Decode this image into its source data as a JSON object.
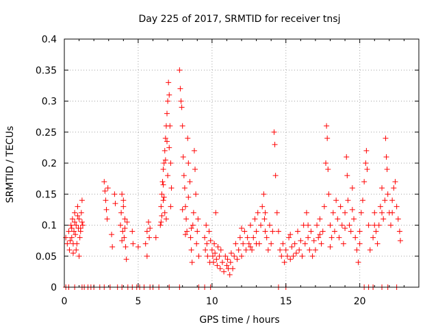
{
  "chart_data": {
    "type": "scatter",
    "title": "Day 225 of 2017, SRMTID for receiver tnsj",
    "xlabel": "GPS time / hours",
    "ylabel": "SRMTID / TECUs",
    "xlim": [
      0,
      24
    ],
    "ylim": [
      0,
      0.4
    ],
    "xticks": [
      0,
      5,
      10,
      15,
      20
    ],
    "xtick_labels": [
      "0",
      "5",
      "10",
      "15",
      "20"
    ],
    "yticks": [
      0,
      0.05,
      0.1,
      0.15,
      0.2,
      0.25,
      0.3,
      0.35,
      0.4
    ],
    "ytick_labels": [
      "0",
      "0.05",
      "0.1",
      "0.15",
      "0.2",
      "0.25",
      "0.3",
      "0.35",
      "0.4"
    ],
    "grid": true,
    "marker": "+",
    "marker_color": "#ff0000",
    "series": [
      {
        "name": "SRMTID",
        "points": [
          [
            0.1,
            0.08
          ],
          [
            0.2,
            0.07
          ],
          [
            0.3,
            0.09
          ],
          [
            0.35,
            0.06
          ],
          [
            0.45,
            0.1
          ],
          [
            0.5,
            0.08
          ],
          [
            0.55,
            0.11
          ],
          [
            0.6,
            0.07
          ],
          [
            0.65,
            0.09
          ],
          [
            0.7,
            0.12
          ],
          [
            0.75,
            0.085
          ],
          [
            0.8,
            0.1
          ],
          [
            0.85,
            0.07
          ],
          [
            0.9,
            0.13
          ],
          [
            0.95,
            0.095
          ],
          [
            1.0,
            0.11
          ],
          [
            1.05,
            0.08
          ],
          [
            1.1,
            0.09
          ],
          [
            1.15,
            0.12
          ],
          [
            1.2,
            0.14
          ],
          [
            1.25,
            0.1
          ],
          [
            0.6,
            0.055
          ],
          [
            0.8,
            0.06
          ],
          [
            1.0,
            0.05
          ],
          [
            0.7,
            0.105
          ],
          [
            0.9,
            0.115
          ],
          [
            1.1,
            0.095
          ],
          [
            0.5,
            0.095
          ],
          [
            1.2,
            0.105
          ],
          [
            0.4,
            0.075
          ],
          [
            2.7,
            0.17
          ],
          [
            2.75,
            0.155
          ],
          [
            2.8,
            0.14
          ],
          [
            2.85,
            0.125
          ],
          [
            2.9,
            0.11
          ],
          [
            2.95,
            0.16
          ],
          [
            3.2,
            0.085
          ],
          [
            3.25,
            0.065
          ],
          [
            3.4,
            0.15
          ],
          [
            3.45,
            0.135
          ],
          [
            3.8,
            0.1
          ],
          [
            3.85,
            0.12
          ],
          [
            3.9,
            0.15
          ],
          [
            3.95,
            0.09
          ],
          [
            4.0,
            0.13
          ],
          [
            4.05,
            0.08
          ],
          [
            4.1,
            0.11
          ],
          [
            4.15,
            0.065
          ],
          [
            4.2,
            0.045
          ],
          [
            4.25,
            0.105
          ],
          [
            3.9,
            0.075
          ],
          [
            4.0,
            0.14
          ],
          [
            4.1,
            0.095
          ],
          [
            4.6,
            0.09
          ],
          [
            4.65,
            0.07
          ],
          [
            5.0,
            0.065
          ],
          [
            5.5,
            0.07
          ],
          [
            5.6,
            0.09
          ],
          [
            5.7,
            0.105
          ],
          [
            5.75,
            0.08
          ],
          [
            5.8,
            0.095
          ],
          [
            5.6,
            0.05
          ],
          [
            6.2,
            0.08
          ],
          [
            6.5,
            0.1
          ],
          [
            6.55,
            0.13
          ],
          [
            6.6,
            0.15
          ],
          [
            6.65,
            0.17
          ],
          [
            6.7,
            0.19
          ],
          [
            6.75,
            0.2
          ],
          [
            6.8,
            0.22
          ],
          [
            6.85,
            0.24
          ],
          [
            6.9,
            0.26
          ],
          [
            6.95,
            0.28
          ],
          [
            7.0,
            0.3
          ],
          [
            7.05,
            0.33
          ],
          [
            7.1,
            0.31
          ],
          [
            7.15,
            0.26
          ],
          [
            7.2,
            0.2
          ],
          [
            7.25,
            0.16
          ],
          [
            6.7,
            0.14
          ],
          [
            6.8,
            0.12
          ],
          [
            6.9,
            0.11
          ],
          [
            7.0,
            0.18
          ],
          [
            6.6,
            0.115
          ],
          [
            6.7,
            0.165
          ],
          [
            6.85,
            0.205
          ],
          [
            6.95,
            0.235
          ],
          [
            7.1,
            0.225
          ],
          [
            7.2,
            0.13
          ],
          [
            6.55,
            0.105
          ],
          [
            6.75,
            0.145
          ],
          [
            7.8,
            0.35
          ],
          [
            7.85,
            0.32
          ],
          [
            7.9,
            0.3
          ],
          [
            7.95,
            0.29
          ],
          [
            8.0,
            0.26
          ],
          [
            8.05,
            0.21
          ],
          [
            8.1,
            0.18
          ],
          [
            8.15,
            0.16
          ],
          [
            8.2,
            0.13
          ],
          [
            8.25,
            0.11
          ],
          [
            8.3,
            0.09
          ],
          [
            8.35,
            0.24
          ],
          [
            8.4,
            0.2
          ],
          [
            8.5,
            0.17
          ],
          [
            8.55,
            0.08
          ],
          [
            8.6,
            0.06
          ],
          [
            8.65,
            0.04
          ],
          [
            8.7,
            0.1
          ],
          [
            8.75,
            0.12
          ],
          [
            8.8,
            0.22
          ],
          [
            8.85,
            0.19
          ],
          [
            8.9,
            0.15
          ],
          [
            8.95,
            0.07
          ],
          [
            9.0,
            0.09
          ],
          [
            9.05,
            0.11
          ],
          [
            9.1,
            0.05
          ],
          [
            8.0,
            0.125
          ],
          [
            8.2,
            0.085
          ],
          [
            8.4,
            0.145
          ],
          [
            8.6,
            0.095
          ],
          [
            9.5,
            0.08
          ],
          [
            9.55,
            0.06
          ],
          [
            9.6,
            0.1
          ],
          [
            9.65,
            0.07
          ],
          [
            9.7,
            0.05
          ],
          [
            9.8,
            0.09
          ],
          [
            9.85,
            0.04
          ],
          [
            9.9,
            0.075
          ],
          [
            10.0,
            0.06
          ],
          [
            10.05,
            0.05
          ],
          [
            10.1,
            0.04
          ],
          [
            10.15,
            0.07
          ],
          [
            10.2,
            0.055
          ],
          [
            10.25,
            0.12
          ],
          [
            10.3,
            0.045
          ],
          [
            10.35,
            0.035
          ],
          [
            10.4,
            0.065
          ],
          [
            10.5,
            0.05
          ],
          [
            10.55,
            0.03
          ],
          [
            10.6,
            0.06
          ],
          [
            10.7,
            0.04
          ],
          [
            10.8,
            0.025
          ],
          [
            10.9,
            0.05
          ],
          [
            11.0,
            0.035
          ],
          [
            11.05,
            0.045
          ],
          [
            11.1,
            0.03
          ],
          [
            11.2,
            0.02
          ],
          [
            11.25,
            0.04
          ],
          [
            11.3,
            0.055
          ],
          [
            11.4,
            0.03
          ],
          [
            11.5,
            0.05
          ],
          [
            11.6,
            0.07
          ],
          [
            11.7,
            0.045
          ],
          [
            11.8,
            0.06
          ],
          [
            11.9,
            0.08
          ],
          [
            12.0,
            0.05
          ],
          [
            12.1,
            0.07
          ],
          [
            12.2,
            0.09
          ],
          [
            12.3,
            0.06
          ],
          [
            12.4,
            0.08
          ],
          [
            12.5,
            0.07
          ],
          [
            12.6,
            0.1
          ],
          [
            12.7,
            0.06
          ],
          [
            12.8,
            0.08
          ],
          [
            12.9,
            0.11
          ],
          [
            13.0,
            0.09
          ],
          [
            13.1,
            0.12
          ],
          [
            13.2,
            0.07
          ],
          [
            13.3,
            0.1
          ],
          [
            13.4,
            0.13
          ],
          [
            13.5,
            0.15
          ],
          [
            13.55,
            0.11
          ],
          [
            13.6,
            0.09
          ],
          [
            13.7,
            0.08
          ],
          [
            13.8,
            0.06
          ],
          [
            13.9,
            0.1
          ],
          [
            14.0,
            0.07
          ],
          [
            14.1,
            0.09
          ],
          [
            14.2,
            0.25
          ],
          [
            14.25,
            0.23
          ],
          [
            14.3,
            0.18
          ],
          [
            14.4,
            0.12
          ],
          [
            14.5,
            0.09
          ],
          [
            14.6,
            0.06
          ],
          [
            14.7,
            0.05
          ],
          [
            14.8,
            0.07
          ],
          [
            14.9,
            0.04
          ],
          [
            15.0,
            0.06
          ],
          [
            15.1,
            0.05
          ],
          [
            15.2,
            0.08
          ],
          [
            15.3,
            0.045
          ],
          [
            15.4,
            0.065
          ],
          [
            15.5,
            0.05
          ],
          [
            15.6,
            0.07
          ],
          [
            15.7,
            0.055
          ],
          [
            15.8,
            0.09
          ],
          [
            15.9,
            0.06
          ],
          [
            16.0,
            0.075
          ],
          [
            16.1,
            0.05
          ],
          [
            16.2,
            0.1
          ],
          [
            16.3,
            0.07
          ],
          [
            16.4,
            0.12
          ],
          [
            16.5,
            0.08
          ],
          [
            16.6,
            0.06
          ],
          [
            16.7,
            0.09
          ],
          [
            16.8,
            0.05
          ],
          [
            16.9,
            0.075
          ],
          [
            17.0,
            0.06
          ],
          [
            17.1,
            0.1
          ],
          [
            17.2,
            0.08
          ],
          [
            17.3,
            0.11
          ],
          [
            17.4,
            0.07
          ],
          [
            17.5,
            0.09
          ],
          [
            17.6,
            0.13
          ],
          [
            17.7,
            0.2
          ],
          [
            17.75,
            0.26
          ],
          [
            17.8,
            0.24
          ],
          [
            17.85,
            0.19
          ],
          [
            17.9,
            0.15
          ],
          [
            18.0,
            0.1
          ],
          [
            18.1,
            0.08
          ],
          [
            18.2,
            0.12
          ],
          [
            18.3,
            0.09
          ],
          [
            18.4,
            0.14
          ],
          [
            18.5,
            0.11
          ],
          [
            18.6,
            0.08
          ],
          [
            18.7,
            0.13
          ],
          [
            18.8,
            0.1
          ],
          [
            18.9,
            0.07
          ],
          [
            19.0,
            0.12
          ],
          [
            19.1,
            0.21
          ],
          [
            19.15,
            0.18
          ],
          [
            19.2,
            0.14
          ],
          [
            19.3,
            0.1
          ],
          [
            19.4,
            0.09
          ],
          [
            19.5,
            0.16
          ],
          [
            19.6,
            0.11
          ],
          [
            19.7,
            0.08
          ],
          [
            19.8,
            0.06
          ],
          [
            19.9,
            0.04
          ],
          [
            20.0,
            0.09
          ],
          [
            20.1,
            0.12
          ],
          [
            20.2,
            0.14
          ],
          [
            20.3,
            0.17
          ],
          [
            20.4,
            0.2
          ],
          [
            20.45,
            0.22
          ],
          [
            20.5,
            0.19
          ],
          [
            20.6,
            0.1
          ],
          [
            20.7,
            0.06
          ],
          [
            20.9,
            0.08
          ],
          [
            21.0,
            0.12
          ],
          [
            21.1,
            0.09
          ],
          [
            21.2,
            0.07
          ],
          [
            21.3,
            0.1
          ],
          [
            21.4,
            0.13
          ],
          [
            21.5,
            0.16
          ],
          [
            21.6,
            0.11
          ],
          [
            21.7,
            0.14
          ],
          [
            21.75,
            0.24
          ],
          [
            21.8,
            0.21
          ],
          [
            21.85,
            0.19
          ],
          [
            21.9,
            0.15
          ],
          [
            22.0,
            0.12
          ],
          [
            22.1,
            0.1
          ],
          [
            22.2,
            0.14
          ],
          [
            22.3,
            0.16
          ],
          [
            22.4,
            0.17
          ],
          [
            22.5,
            0.13
          ],
          [
            22.6,
            0.11
          ],
          [
            22.7,
            0.09
          ],
          [
            22.75,
            0.075
          ],
          [
            12.0,
            0.095
          ],
          [
            12.6,
            0.065
          ],
          [
            13.0,
            0.07
          ],
          [
            13.6,
            0.12
          ],
          [
            15.3,
            0.085
          ],
          [
            16.5,
            0.1
          ],
          [
            17.3,
            0.085
          ],
          [
            18.0,
            0.065
          ],
          [
            19.0,
            0.095
          ],
          [
            19.5,
            0.125
          ],
          [
            20.0,
            0.07
          ],
          [
            21.0,
            0.1
          ],
          [
            21.5,
            0.12
          ],
          [
            22.2,
            0.12
          ],
          [
            0.1,
            0
          ],
          [
            0.3,
            0
          ],
          [
            0.7,
            0
          ],
          [
            1.2,
            0
          ],
          [
            1.35,
            0
          ],
          [
            1.6,
            0
          ],
          [
            1.8,
            0
          ],
          [
            2.0,
            0
          ],
          [
            2.4,
            0
          ],
          [
            2.7,
            0
          ],
          [
            3.1,
            0
          ],
          [
            3.6,
            0
          ],
          [
            3.9,
            0
          ],
          [
            4.3,
            0
          ],
          [
            4.6,
            0
          ],
          [
            4.9,
            0
          ],
          [
            5.1,
            0
          ],
          [
            5.4,
            0
          ],
          [
            5.8,
            0
          ],
          [
            6.0,
            0
          ],
          [
            6.4,
            0
          ],
          [
            7.1,
            0
          ],
          [
            7.8,
            0
          ],
          [
            9.1,
            0
          ],
          [
            9.5,
            0
          ],
          [
            9.9,
            0
          ],
          [
            14.5,
            0
          ],
          [
            15.0,
            0
          ],
          [
            20.3,
            0
          ],
          [
            20.6,
            0
          ],
          [
            20.9,
            0
          ],
          [
            21.5,
            0
          ],
          [
            21.9,
            0
          ],
          [
            22.5,
            0
          ]
        ]
      }
    ]
  }
}
